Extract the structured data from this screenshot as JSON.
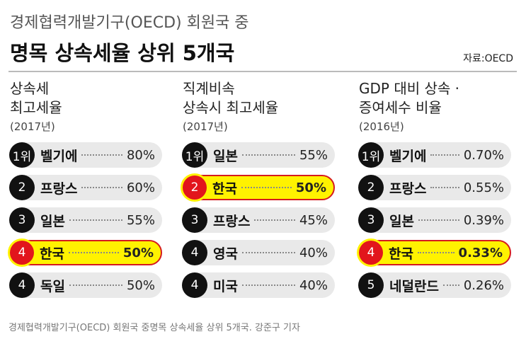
{
  "header": {
    "subtitle": "경제협력개발기구(OECD) 회원국 중",
    "title": "명목 상속세율 상위 5개국",
    "source": "자료:OECD"
  },
  "columns": [
    {
      "title_lines": [
        "상속세",
        "최고세율"
      ],
      "year": "(2017년)",
      "rows": [
        {
          "rank": "1위",
          "name": "벨기에",
          "value": "80%",
          "highlight": false
        },
        {
          "rank": "2",
          "name": "프랑스",
          "value": "60%",
          "highlight": false
        },
        {
          "rank": "3",
          "name": "일본",
          "value": "55%",
          "highlight": false
        },
        {
          "rank": "4",
          "name": "한국",
          "value": "50%",
          "highlight": true
        },
        {
          "rank": "4",
          "name": "독일",
          "value": "50%",
          "highlight": false
        }
      ]
    },
    {
      "title_lines": [
        "직계비속",
        "상속시 최고세율"
      ],
      "year": "(2017년)",
      "rows": [
        {
          "rank": "1위",
          "name": "일본",
          "value": "55%",
          "highlight": false
        },
        {
          "rank": "2",
          "name": "한국",
          "value": "50%",
          "highlight": true
        },
        {
          "rank": "3",
          "name": "프랑스",
          "value": "45%",
          "highlight": false
        },
        {
          "rank": "4",
          "name": "영국",
          "value": "40%",
          "highlight": false
        },
        {
          "rank": "4",
          "name": "미국",
          "value": "40%",
          "highlight": false
        }
      ]
    },
    {
      "title_lines": [
        "GDP 대비 상속 ·",
        "증여세수 비율"
      ],
      "year": "(2016년)",
      "rows": [
        {
          "rank": "1위",
          "name": "벨기에",
          "value": "0.70%",
          "highlight": false
        },
        {
          "rank": "2",
          "name": "프랑스",
          "value": "0.55%",
          "highlight": false
        },
        {
          "rank": "3",
          "name": "일본",
          "value": "0.39%",
          "highlight": false
        },
        {
          "rank": "4",
          "name": "한국",
          "value": "0.33%",
          "highlight": true
        },
        {
          "rank": "5",
          "name": "네덜란드",
          "value": "0.26%",
          "highlight": false
        }
      ]
    }
  ],
  "caption": "경제협력개발기구(OECD) 회원국 중명목 상속세율 상위 5개국. 강준구 기자"
}
